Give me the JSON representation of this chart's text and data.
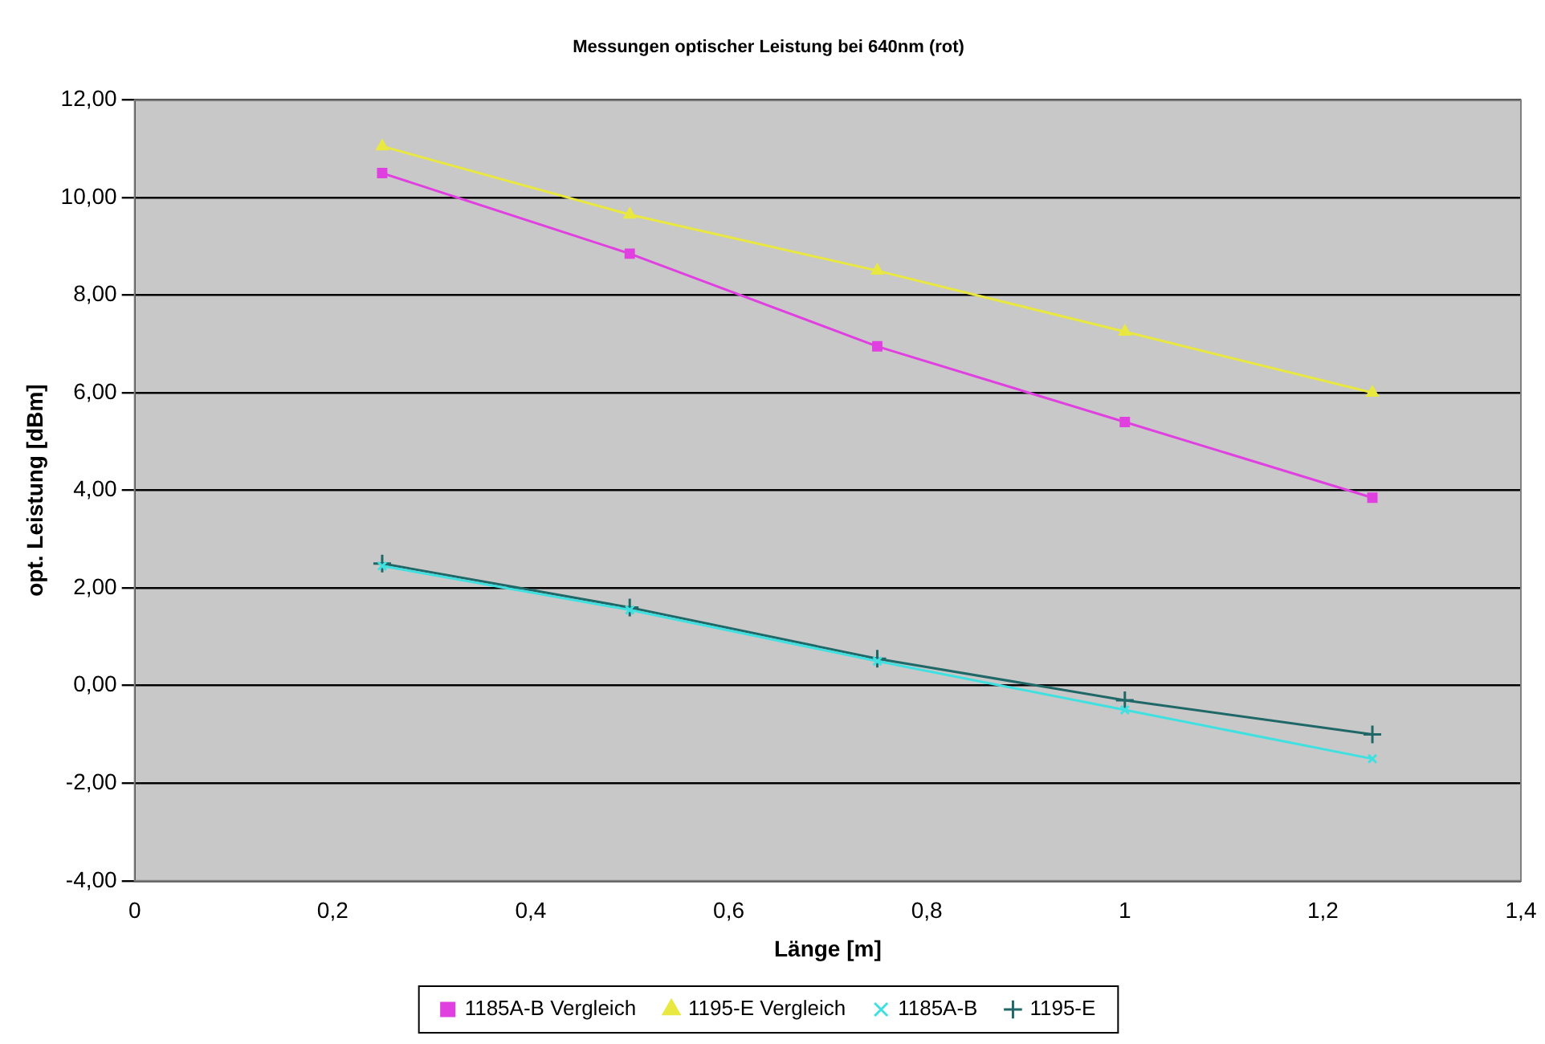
{
  "chart_data": {
    "type": "line",
    "title": "Messungen optischer Leistung bei 640nm (rot)",
    "xlabel": "Länge [m]",
    "ylabel": "opt. Leistung [dBm]",
    "x": [
      0.25,
      0.5,
      0.75,
      1,
      1.25
    ],
    "series": [
      {
        "name": "1185A-B Vergleich",
        "color": "#e040e0",
        "marker": "square",
        "values": [
          10.5,
          8.85,
          6.95,
          5.4,
          3.85
        ]
      },
      {
        "name": "1195-E Vergleich",
        "color": "#e8e840",
        "marker": "triangle",
        "values": [
          11.05,
          9.65,
          8.5,
          7.25,
          6.0
        ]
      },
      {
        "name": "1185A-B",
        "color": "#40e0e0",
        "marker": "cross",
        "values": [
          2.45,
          1.55,
          0.5,
          -0.5,
          -1.5
        ]
      },
      {
        "name": "1195-E",
        "color": "#206868",
        "marker": "plus",
        "values": [
          2.5,
          1.6,
          0.55,
          -0.3,
          -1.0
        ]
      }
    ],
    "xlim": [
      0,
      1.4
    ],
    "xticks": [
      0,
      {
        "value": 0.2,
        "label": "0,2"
      },
      {
        "value": 0.4,
        "label": "0,4"
      },
      {
        "value": 0.6,
        "label": "0,6"
      },
      {
        "value": 0.8,
        "label": "0,8"
      },
      1,
      {
        "value": 1.2,
        "label": "1,2"
      },
      {
        "value": 1.4,
        "label": "1,4"
      }
    ],
    "ylim": [
      -4,
      12
    ],
    "yticks": [
      {
        "value": -4,
        "label": "-4,00"
      },
      {
        "value": -2,
        "label": "-2,00"
      },
      {
        "value": 0,
        "label": "0,00"
      },
      {
        "value": 2,
        "label": "2,00"
      },
      {
        "value": 4,
        "label": "4,00"
      },
      {
        "value": 6,
        "label": "6,00"
      },
      {
        "value": 8,
        "label": "8,00"
      },
      {
        "value": 10,
        "label": "10,00"
      },
      {
        "value": 12,
        "label": "12,00"
      }
    ],
    "grid": "y",
    "legend": "bottom"
  }
}
